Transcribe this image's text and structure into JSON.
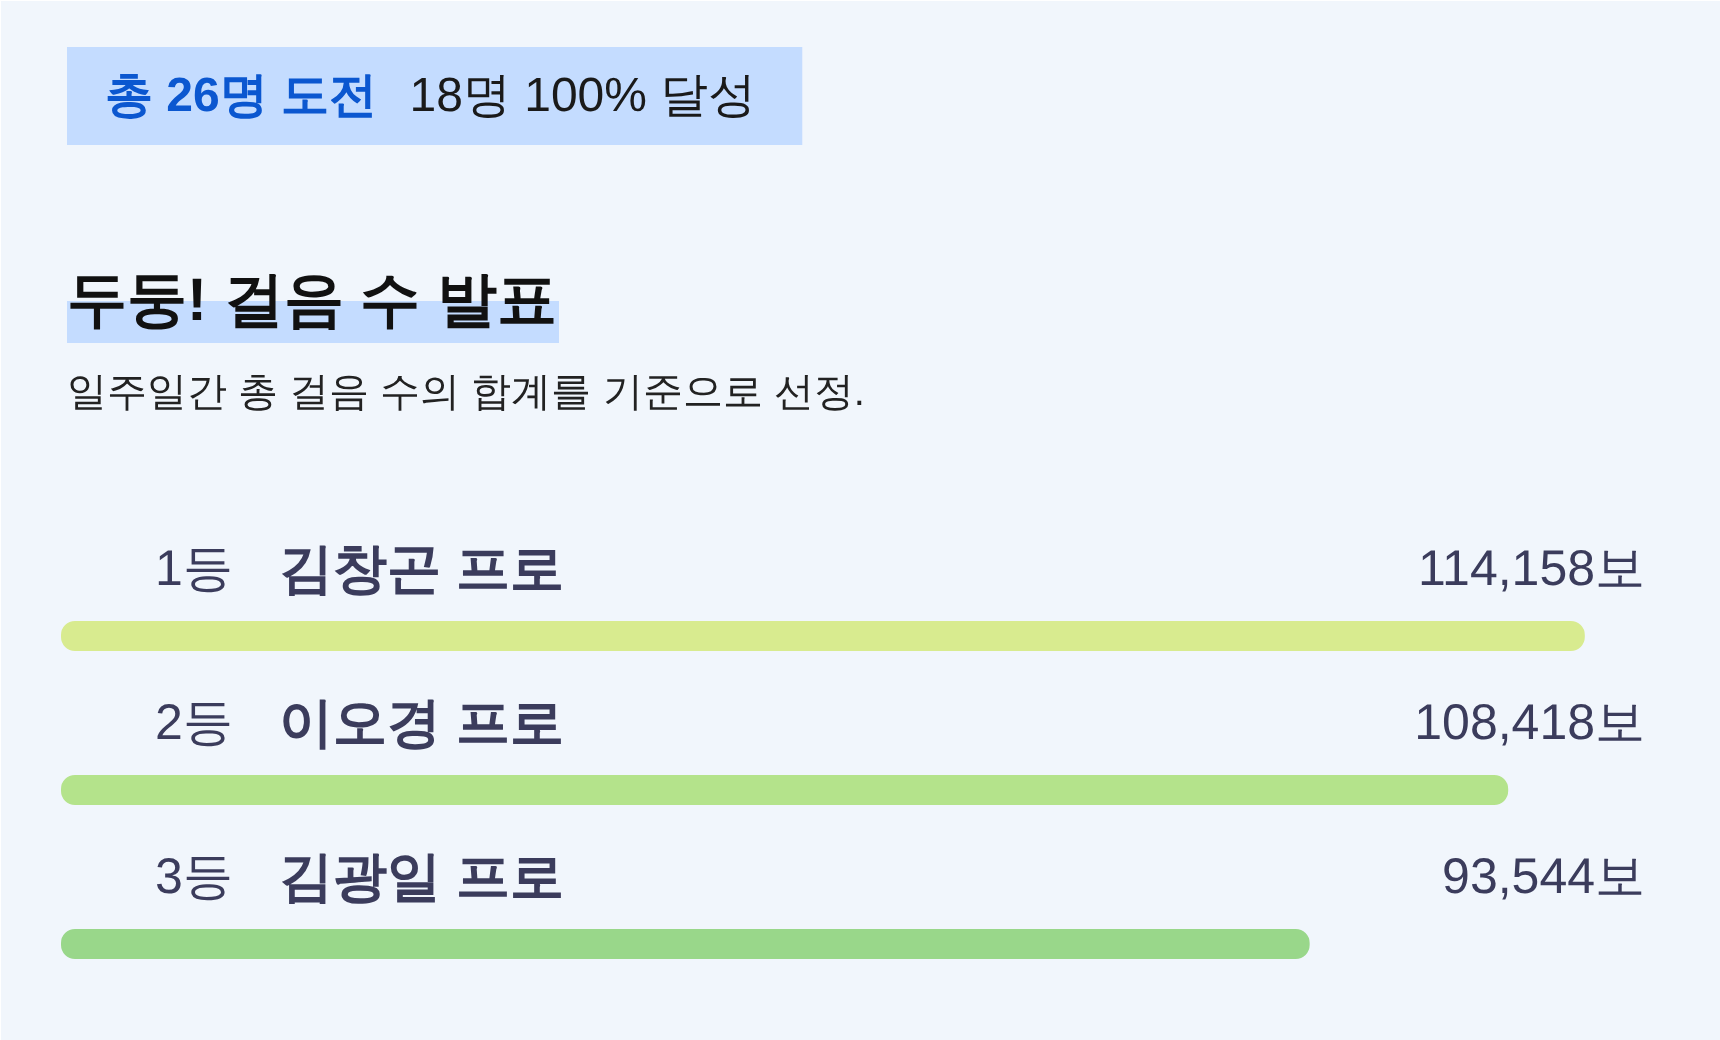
{
  "chart_data": {
    "type": "bar",
    "orientation": "horizontal",
    "title": "두둥! 걸음 수 발표",
    "subtitle": "일주일간 총 걸음 수의 합계를 기준으로 선정.",
    "annotations": [
      "총 26명 도전",
      "18명 100% 달성",
      "1등",
      "2등",
      "3등"
    ],
    "categories": [
      "김창곤 프로",
      "이오경 프로",
      "김광일 프로"
    ],
    "values": [
      114158,
      108418,
      93544
    ],
    "colors": [
      "#d8eb8f",
      "#b4e38b",
      "#99d78a"
    ],
    "value_labels": [
      "114,158보",
      "108,418보",
      "93,544보"
    ],
    "tick_labels": "y"
  }
}
